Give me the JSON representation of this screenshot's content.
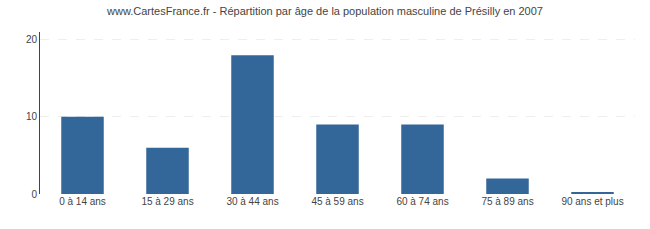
{
  "chart_data": {
    "type": "bar",
    "title": "www.CartesFrance.fr - Répartition par âge de la population masculine de Présilly en 2007",
    "categories": [
      "0 à 14 ans",
      "15 à 29 ans",
      "30 à 44 ans",
      "45 à 59 ans",
      "60 à 74 ans",
      "75 à 89 ans",
      "90 ans et plus"
    ],
    "values": [
      10,
      6,
      18,
      9,
      9,
      2,
      0.2
    ],
    "color": "#336699",
    "ylim": [
      0,
      21
    ],
    "yticks": [
      0,
      10,
      20
    ],
    "grid": true
  }
}
